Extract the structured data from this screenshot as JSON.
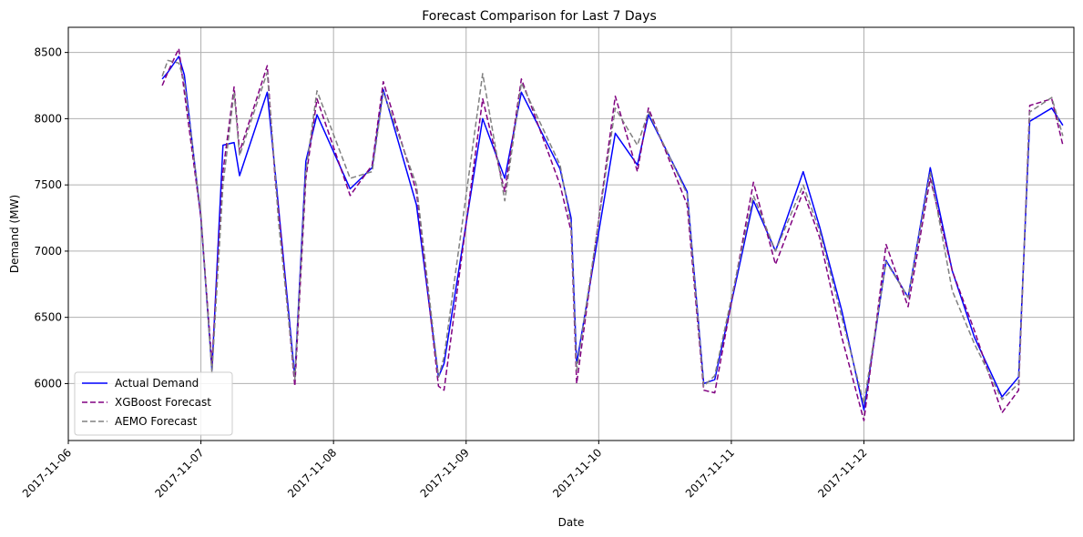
{
  "chart_data": {
    "type": "line",
    "title": "Forecast Comparison for Last 7 Days",
    "xlabel": "Date",
    "ylabel": "Demand (MW)",
    "xlim": [
      "2017-11-06T00:00",
      "2017-11-13T14:00"
    ],
    "ylim": [
      5570,
      8690
    ],
    "grid": true,
    "legend_position": "lower-left",
    "x_ticks": [
      "2017-11-06",
      "2017-11-07",
      "2017-11-08",
      "2017-11-09",
      "2017-11-10",
      "2017-11-11",
      "2017-11-12"
    ],
    "y_ticks": [
      6000,
      6500,
      7000,
      7500,
      8000,
      8500
    ],
    "x": [
      "2017-11-06T17:00",
      "2017-11-06T18:00",
      "2017-11-06T20:00",
      "2017-11-06T21:00",
      "2017-11-07T00:00",
      "2017-11-07T02:00",
      "2017-11-07T04:00",
      "2017-11-07T06:00",
      "2017-11-07T07:00",
      "2017-11-07T12:00",
      "2017-11-07T13:30",
      "2017-11-07T14:00",
      "2017-11-07T17:00",
      "2017-11-07T19:00",
      "2017-11-07T21:00",
      "2017-11-08T03:00",
      "2017-11-08T07:00",
      "2017-11-08T09:00",
      "2017-11-08T15:00",
      "2017-11-08T19:00",
      "2017-11-08T20:00",
      "2017-11-09T03:00",
      "2017-11-09T07:00",
      "2017-11-09T10:00",
      "2017-11-09T17:00",
      "2017-11-09T19:00",
      "2017-11-09T20:00",
      "2017-11-10T03:00",
      "2017-11-10T07:00",
      "2017-11-10T09:00",
      "2017-11-10T16:00",
      "2017-11-10T19:00",
      "2017-11-10T21:00",
      "2017-11-11T04:00",
      "2017-11-11T08:00",
      "2017-11-11T13:00",
      "2017-11-11T16:00",
      "2017-11-11T20:00",
      "2017-11-12T00:00",
      "2017-11-12T04:00",
      "2017-11-12T08:00",
      "2017-11-12T12:00",
      "2017-11-12T16:00",
      "2017-11-12T20:00",
      "2017-11-13T01:00",
      "2017-11-13T04:00",
      "2017-11-13T06:00",
      "2017-11-13T10:00",
      "2017-11-13T12:00"
    ],
    "series": [
      {
        "name": "Actual Demand",
        "color": "#0000ff",
        "dash": "solid",
        "values": [
          8300,
          8350,
          8470,
          8330,
          7250,
          6100,
          7800,
          7820,
          7570,
          8200,
          7570,
          7350,
          6050,
          7680,
          8030,
          7470,
          7630,
          8220,
          7350,
          6050,
          6150,
          8000,
          7550,
          8200,
          7620,
          7250,
          6150,
          7890,
          7650,
          8030,
          7450,
          6000,
          6030,
          7380,
          7000,
          7600,
          7180,
          6550,
          5800,
          6930,
          6650,
          7630,
          6850,
          6350,
          5900,
          6050,
          7980,
          8080,
          7950
        ]
      },
      {
        "name": "XGBoost Forecast",
        "color": "#800080",
        "dash": "dashed",
        "values": [
          8250,
          8350,
          8530,
          8200,
          7250,
          6150,
          7600,
          8240,
          7750,
          8400,
          7500,
          7330,
          5980,
          7550,
          8150,
          7420,
          7650,
          8280,
          7450,
          5980,
          5950,
          8150,
          7450,
          8300,
          7500,
          7150,
          6000,
          8170,
          7600,
          8080,
          7350,
          5950,
          5930,
          7520,
          6900,
          7450,
          7100,
          6350,
          5720,
          7050,
          6580,
          7550,
          6850,
          6400,
          5780,
          5950,
          8100,
          8150,
          7800
        ]
      },
      {
        "name": "AEMO Forecast",
        "color": "#808080",
        "dash": "dashed",
        "values": [
          8320,
          8440,
          8420,
          8280,
          7280,
          6080,
          7500,
          8200,
          7720,
          8350,
          7550,
          7240,
          6030,
          7600,
          8210,
          7550,
          7600,
          8200,
          7500,
          6050,
          6200,
          8340,
          7380,
          8270,
          7650,
          7200,
          6100,
          8080,
          7800,
          8050,
          7430,
          5980,
          6060,
          7420,
          7000,
          7500,
          7150,
          6500,
          5850,
          6920,
          6650,
          7600,
          6700,
          6300,
          5880,
          6000,
          8050,
          8160,
          7870
        ]
      }
    ]
  }
}
